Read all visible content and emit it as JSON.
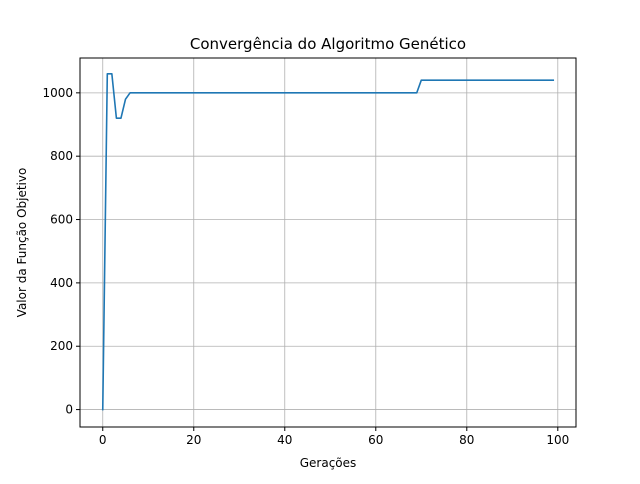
{
  "chart_data": {
    "type": "line",
    "title": "Convergência do Algoritmo Genético",
    "xlabel": "Gerações",
    "ylabel": "Valor da Função Objetivo",
    "xlim": [
      -5,
      104
    ],
    "ylim": [
      -55,
      1110
    ],
    "xticks": [
      0,
      20,
      40,
      60,
      80,
      100
    ],
    "yticks": [
      0,
      200,
      400,
      600,
      800,
      1000
    ],
    "grid": true,
    "series": [
      {
        "color": "#1f77b4",
        "points": [
          [
            0,
            0
          ],
          [
            1,
            1060
          ],
          [
            2,
            1060
          ],
          [
            3,
            920
          ],
          [
            4,
            920
          ],
          [
            5,
            980
          ],
          [
            6,
            1000
          ],
          [
            69,
            1000
          ],
          [
            70,
            1040
          ],
          [
            99,
            1040
          ]
        ]
      }
    ]
  }
}
